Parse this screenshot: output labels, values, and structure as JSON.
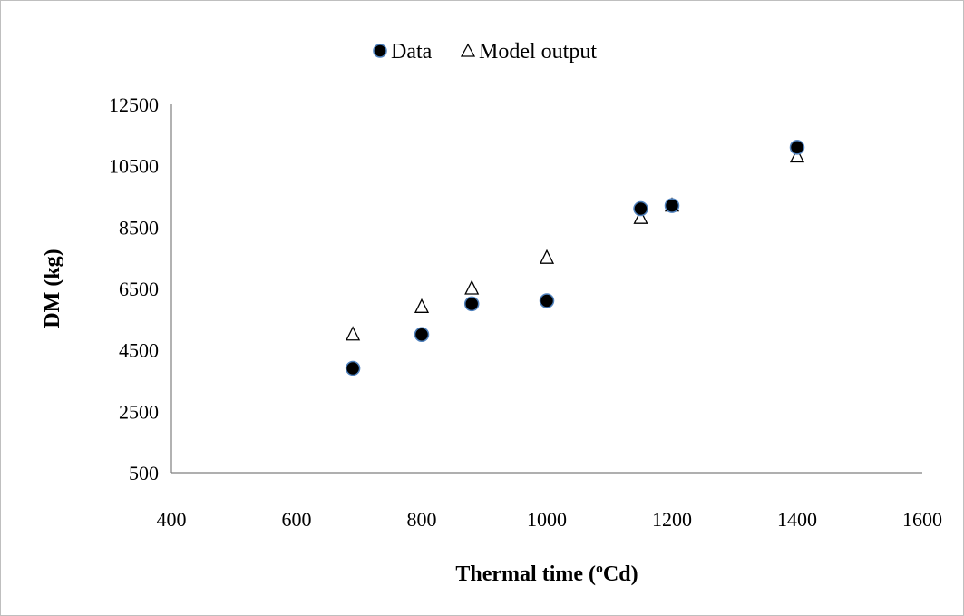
{
  "chart_data": {
    "type": "scatter",
    "title": "",
    "xlabel": "Thermal time (ºCd)",
    "ylabel": "DM (kg)",
    "xlim": [
      400,
      1600
    ],
    "ylim": [
      500,
      12500
    ],
    "x_ticks": [
      400,
      600,
      800,
      1000,
      1200,
      1400,
      1600
    ],
    "y_ticks": [
      500,
      2500,
      4500,
      6500,
      8500,
      10500,
      12500
    ],
    "grid": false,
    "legend_position": "top",
    "series": [
      {
        "name": "Data",
        "marker": "filled-circle",
        "color": "#000000",
        "edge_color": "#4f81bd",
        "x": [
          690,
          800,
          880,
          1000,
          1150,
          1200,
          1400
        ],
        "y": [
          3900,
          5000,
          6000,
          6100,
          9100,
          9200,
          11100
        ]
      },
      {
        "name": "Model output",
        "marker": "open-triangle",
        "color": "#000000",
        "x": [
          690,
          800,
          880,
          1000,
          1150,
          1200,
          1400
        ],
        "y": [
          5000,
          5900,
          6500,
          7500,
          8800,
          9200,
          10800
        ]
      }
    ]
  }
}
